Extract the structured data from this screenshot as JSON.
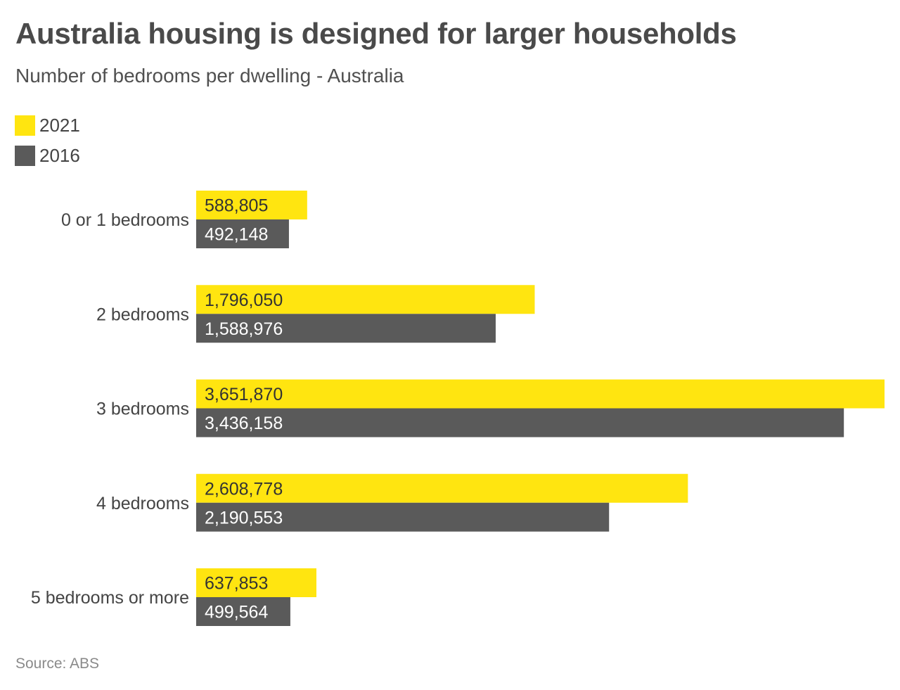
{
  "header": {
    "title": "Australia housing is designed for larger households",
    "subtitle": "Number of bedrooms per dwelling - Australia"
  },
  "footer": {
    "source": "Source: ABS"
  },
  "colors": {
    "series_2021": "#ffe510",
    "series_2016": "#5a5a5a",
    "label_on_2021": "#333333",
    "label_on_2016": "#ffffff"
  },
  "chart_data": {
    "type": "bar",
    "orientation": "horizontal",
    "title": "Australia housing is designed for larger households",
    "subtitle": "Number of bedrooms per dwelling - Australia",
    "categories": [
      "0 or 1 bedrooms",
      "2 bedrooms",
      "3 bedrooms",
      "4 bedrooms",
      "5 bedrooms or more"
    ],
    "series": [
      {
        "name": "2021",
        "values": [
          588805,
          1796050,
          3651870,
          2608778,
          637853
        ],
        "labels": [
          "588,805",
          "1,796,050",
          "3,651,870",
          "2,608,778",
          "637,853"
        ]
      },
      {
        "name": "2016",
        "values": [
          492148,
          1588976,
          3436158,
          2190553,
          499564
        ],
        "labels": [
          "492,148",
          "1,588,976",
          "3,436,158",
          "2,190,553",
          "499,564"
        ]
      }
    ],
    "xlim": [
      0,
      3651870
    ],
    "grid": false,
    "legend": "top-left",
    "source": "Source: ABS"
  }
}
